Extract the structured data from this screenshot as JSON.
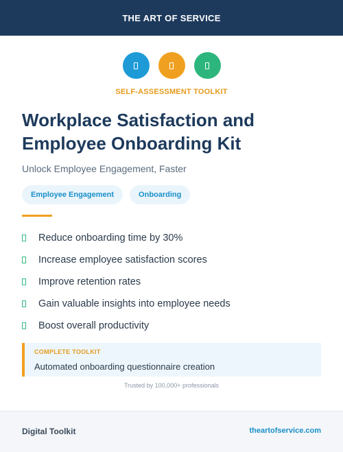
{
  "header": {
    "brand": "THE ART OF SERVICE"
  },
  "icons": [
    {
      "name": "blue-icon",
      "color": "#1e9bd7"
    },
    {
      "name": "orange-icon",
      "color": "#f0a020"
    },
    {
      "name": "green-icon",
      "color": "#2cb67d"
    }
  ],
  "eyebrow": "SELF-ASSESSMENT TOOLKIT",
  "title_line1": "Workplace Satisfaction and",
  "title_line2": "Employee Onboarding Kit",
  "subtitle": "Unlock Employee Engagement, Faster",
  "tags": [
    "Employee Engagement",
    "Onboarding"
  ],
  "benefits": [
    "Reduce onboarding time by 30%",
    "Increase employee satisfaction scores",
    "Improve retention rates",
    "Gain valuable insights into employee needs",
    "Boost overall productivity"
  ],
  "callout": {
    "label": "COMPLETE TOOLKIT",
    "text": "Automated onboarding questionnaire creation"
  },
  "trusted": "Trusted by 100,000+ professionals",
  "footer": {
    "left": "Digital Toolkit",
    "right": "theartofservice.com"
  }
}
